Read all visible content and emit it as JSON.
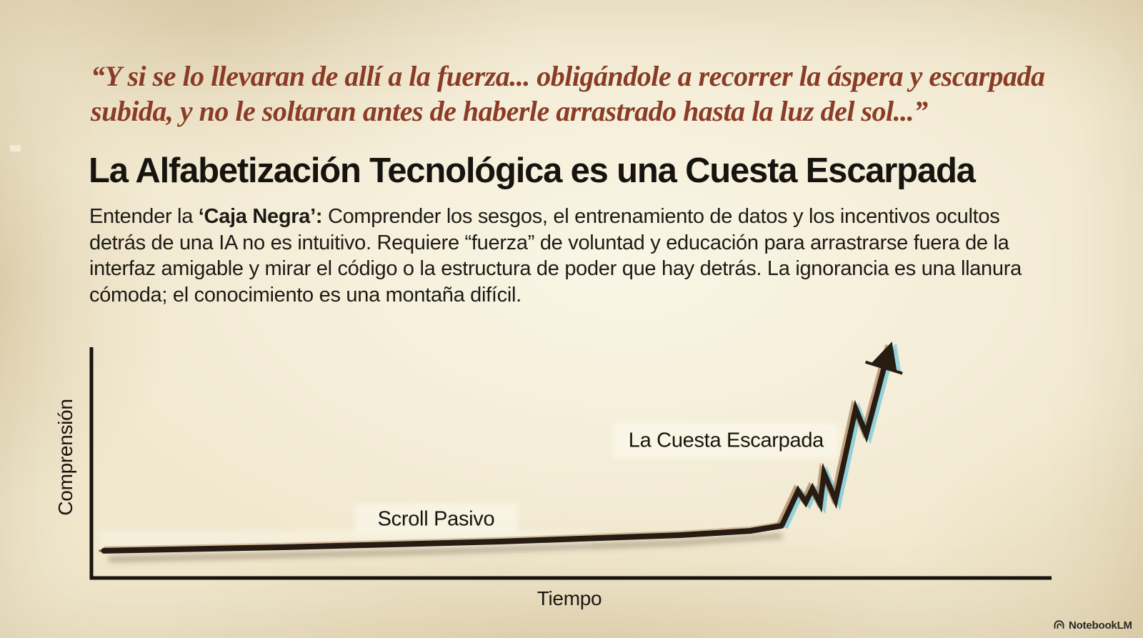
{
  "quote": {
    "lines": [
      "“Y si se lo llevaran de allí a la fuerza... obligándole a recorrer la áspera y escarpada",
      "subida, y no le soltaran antes de haberle arrastrado hasta la luz del sol...”"
    ]
  },
  "heading": "La Alfabetización Tecnológica es una Cuesta Escarpada",
  "body": {
    "lead": "Entender la ",
    "bold": "‘Caja Negra’:",
    "rest": " Comprender los sesgos, el entrenamiento de datos y los incentivos ocultos detrás de una IA no es intuitivo. Requiere “fuerza” de voluntad y educación para arrastrarse fuera de la interfaz amigable y mirar el código o la estructura de poder que hay detrás. La ignorancia es una llanura cómoda; el conocimiento es una montaña difícil."
  },
  "watermark": {
    "label": "NotebookLM"
  },
  "colors": {
    "background_parchment": "#f0e7cd",
    "quote_text": "#8a3c26",
    "heading_text": "#17140f",
    "body_text": "#1d1a15",
    "axis": "#17130d",
    "line_main": "#261c12",
    "glitch_cyan": "#79cbdc",
    "glitch_tan": "#9a6136",
    "watermark_text": "#1d1d1d"
  },
  "chart_data": {
    "type": "line",
    "title": "",
    "xlabel": "Tiempo",
    "ylabel": "Comprensión",
    "grid": false,
    "legend": false,
    "axis_range": {
      "x": [
        0,
        100
      ],
      "y": [
        0,
        100
      ]
    },
    "arrow_end": true,
    "steep_start_index": 5,
    "series": [
      {
        "name": "Comprensión",
        "x": [
          1.3,
          20.0,
          42.6,
          61.2,
          68.6,
          71.9,
          73.6,
          74.4,
          75.1,
          75.9,
          76.3,
          77.5,
          79.6,
          80.7,
          82.6,
          83.2
        ],
        "y": [
          11.5,
          13.0,
          15.4,
          18.1,
          19.9,
          22.1,
          36.9,
          32.0,
          37.8,
          31.4,
          44.4,
          32.9,
          71.6,
          60.7,
          89.7,
          97.6
        ]
      }
    ],
    "annotations": [
      {
        "text": "Scroll Pasivo",
        "x": 35.9,
        "y": 24.8
      },
      {
        "text": "La Cuesta Escarpada",
        "x": 66.1,
        "y": 58.0
      }
    ]
  }
}
